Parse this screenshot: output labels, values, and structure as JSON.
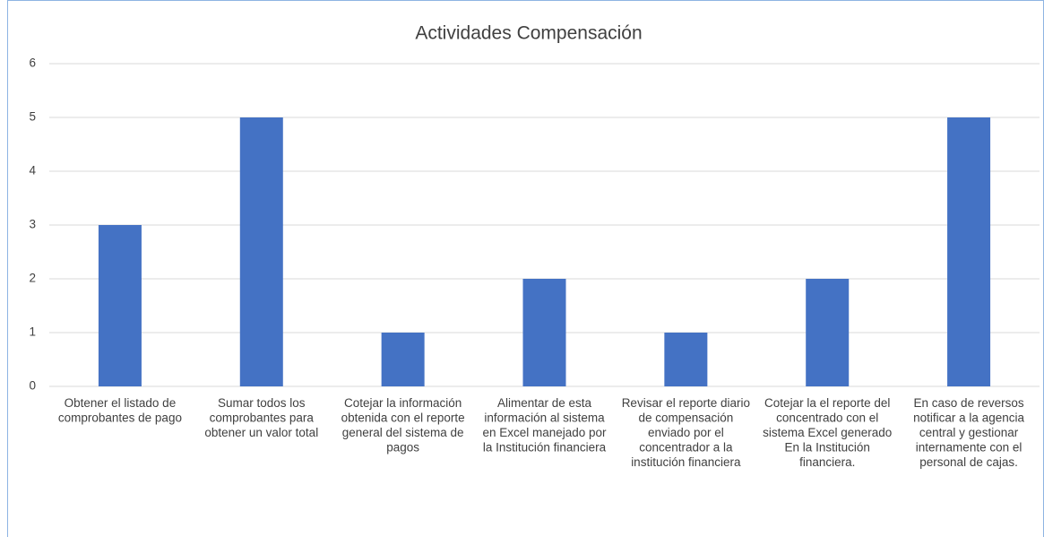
{
  "chart_data": {
    "type": "bar",
    "title": "Actividades Compensación",
    "categories": [
      "Obtener el listado de comprobantes de pago",
      "Sumar todos los comprobantes para obtener un valor total",
      "Cotejar la información obtenida con el reporte general del sistema de pagos",
      "Alimentar de esta información al sistema en Excel manejado por la Institución financiera",
      "Revisar el reporte diario de compensación enviado por el concentrador a la institución financiera",
      "Cotejar la el reporte del concentrado con el sistema Excel generado En la Institución financiera.",
      "En caso de reversos notificar a la agencia central y gestionar internamente con el personal de cajas."
    ],
    "values": [
      3,
      5,
      1,
      2,
      1,
      2,
      5
    ],
    "color": "#4472c4",
    "ylim": [
      0,
      6
    ],
    "yticks": [
      0,
      1,
      2,
      3,
      4,
      5,
      6
    ],
    "grid": true
  }
}
